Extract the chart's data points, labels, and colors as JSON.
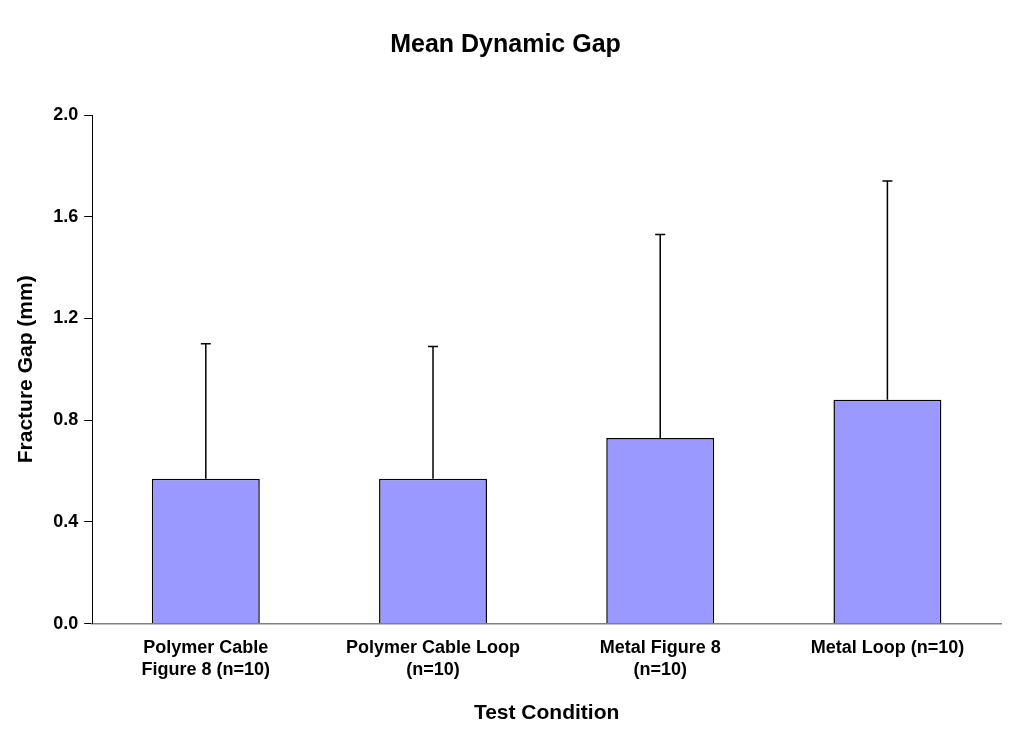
{
  "chart_data": {
    "type": "bar",
    "title": "Mean Dynamic Gap",
    "xlabel": "Test Condition",
    "ylabel": "Fracture Gap (mm)",
    "categories": [
      "Polymer Cable Figure 8 (n=10)",
      "Polymer Cable Loop (n=10)",
      "Metal Figure 8 (n=10)",
      "Metal Loop (n=10)"
    ],
    "values": [
      0.57,
      0.57,
      0.73,
      0.88
    ],
    "errors": [
      [
        0.57,
        1.1
      ],
      [
        0.57,
        1.09
      ],
      [
        0.73,
        1.53
      ],
      [
        0.88,
        1.74
      ]
    ],
    "color": "#9999ff",
    "ylim": [
      0,
      2
    ],
    "yticks": [
      {
        "value": 0,
        "label": "0.0"
      },
      {
        "value": 0.4,
        "label": "0.4"
      },
      {
        "value": 0.8,
        "label": "0.8"
      },
      {
        "value": 1.2,
        "label": "1.2"
      },
      {
        "value": 1.6,
        "label": "1.6"
      },
      {
        "value": 2,
        "label": "2.0"
      }
    ],
    "grid": false,
    "legend": false
  }
}
